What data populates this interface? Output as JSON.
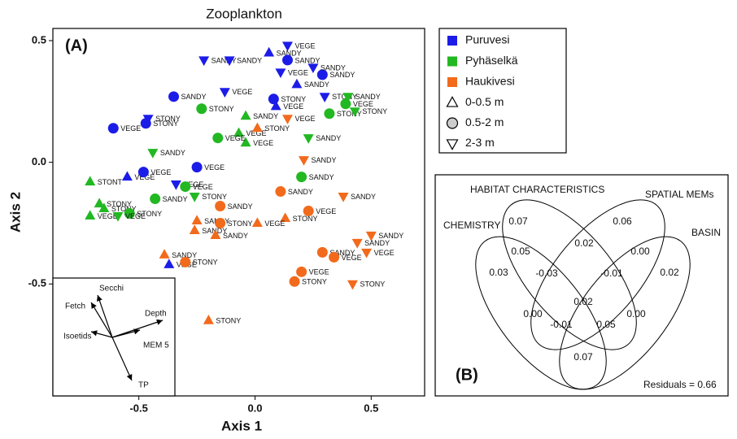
{
  "chart_data": {
    "type": "scatter",
    "title": "Zooplankton",
    "panel_label": "(A)",
    "x_label": "Axis 1",
    "y_label": "Axis 2",
    "xlim": [
      -0.87,
      0.73
    ],
    "ylim": [
      -0.96,
      0.55
    ],
    "xticks": [
      -0.5,
      {
        "value": 0,
        "label": "0.0"
      },
      0.5
    ],
    "yticks": [
      -0.5,
      {
        "value": 0,
        "label": "0.0"
      },
      0.5
    ],
    "depths": [
      {
        "name": "0-0.5 m",
        "shape": "triangle-up"
      },
      {
        "name": "0.5-2 m",
        "shape": "circle"
      },
      {
        "name": "2-3 m",
        "shape": "triangle-down"
      }
    ],
    "series": [
      {
        "name": "Puruvesi",
        "color": "#1c1ce8",
        "groups": [
          {
            "x": [
              0.06,
              0.18,
              0.09,
              -0.55,
              -0.37
            ],
            "y": [
              0.45,
              0.32,
              0.23,
              -0.06,
              -0.42
            ],
            "labels": [
              "SANDY",
              "SANDY",
              "VEGE",
              "VEGE",
              "VEGE"
            ]
          },
          {
            "x": [
              0.14,
              0.29,
              -0.35,
              0.08,
              -0.47,
              -0.61,
              -0.48,
              -0.25
            ],
            "y": [
              0.42,
              0.36,
              0.27,
              0.26,
              0.16,
              0.14,
              -0.04,
              -0.02
            ],
            "labels": [
              "SANDY",
              "SANDY",
              "SANDY",
              "STONY",
              "STONY",
              "VEGE",
              "VEGE",
              "VEGE"
            ]
          },
          {
            "x": [
              0.14,
              -0.22,
              -0.11,
              0.25,
              0.11,
              -0.13,
              0.3,
              -0.46,
              -0.34
            ],
            "y": [
              0.48,
              0.42,
              0.42,
              0.39,
              0.37,
              0.29,
              0.27,
              0.18,
              -0.09
            ],
            "labels": [
              "VEGE",
              "SANDY",
              "SANDY",
              "SANDY",
              "VEGE",
              "VEGE",
              "STONY",
              "STONY",
              "VEGE"
            ]
          }
        ]
      },
      {
        "name": "Pyhäselkä",
        "color": "#22b822",
        "groups": [
          {
            "x": [
              -0.04,
              -0.07,
              -0.04,
              -0.71,
              -0.67,
              -0.65,
              -0.71
            ],
            "y": [
              0.19,
              0.12,
              0.08,
              -0.08,
              -0.17,
              -0.19,
              -0.22
            ],
            "labels": [
              "SANDY",
              "VEGE",
              "VEGE",
              "STONT",
              "STONY",
              "STONY",
              "VEGE"
            ]
          },
          {
            "x": [
              0.39,
              0.32,
              -0.23,
              -0.16,
              0.2,
              -0.43,
              -0.3,
              -0.54
            ],
            "y": [
              0.24,
              0.2,
              0.22,
              0.1,
              -0.06,
              -0.15,
              -0.1,
              -0.21
            ],
            "labels": [
              "VEGE",
              "STONY",
              "STONY",
              "VEGE",
              "SANDY",
              "SANDY",
              "VEGE",
              "STONY"
            ]
          },
          {
            "x": [
              0.4,
              0.43,
              0.23,
              -0.44,
              -0.26,
              -0.59
            ],
            "y": [
              0.27,
              0.21,
              0.1,
              0.04,
              -0.14,
              -0.22
            ],
            "labels": [
              "SANDY",
              "STONY",
              "SANDY",
              "SANDY",
              "STONY",
              "VEGE"
            ]
          }
        ]
      },
      {
        "name": "Haukivesi",
        "color": "#f26a1b",
        "groups": [
          {
            "x": [
              0.01,
              0.13,
              0.01,
              -0.25,
              -0.26,
              -0.17,
              -0.39,
              -0.2
            ],
            "y": [
              0.14,
              -0.23,
              -0.25,
              -0.24,
              -0.28,
              -0.3,
              -0.38,
              -0.65
            ],
            "labels": [
              "STONY",
              "STONY",
              "VEGE",
              "SANDY",
              "SANDY",
              "SANDY",
              "SANDY",
              "STONY"
            ]
          },
          {
            "x": [
              0.11,
              0.23,
              -0.15,
              -0.15,
              0.29,
              0.34,
              0.2,
              0.17,
              -0.3
            ],
            "y": [
              -0.12,
              -0.2,
              -0.18,
              -0.25,
              -0.37,
              -0.39,
              -0.45,
              -0.49,
              -0.41
            ],
            "labels": [
              "SANDY",
              "VEGE",
              "SANDY",
              "STONY",
              "SANDY",
              "VEGE",
              "VEGE",
              "STONY",
              "STONY"
            ]
          },
          {
            "x": [
              0.14,
              0.21,
              0.38,
              0.5,
              0.44,
              0.48,
              0.42
            ],
            "y": [
              0.18,
              0.01,
              -0.14,
              -0.3,
              -0.33,
              -0.37,
              -0.5
            ],
            "labels": [
              "VEGE",
              "SANDY",
              "SANDY",
              "SANDY",
              "SANDY",
              "VEGE",
              "STONY"
            ]
          }
        ]
      }
    ]
  },
  "biplot": {
    "variables": [
      "Secchi",
      "Fetch",
      "Depth",
      "Isoetids",
      "MEM 5",
      "TP"
    ]
  },
  "venn": {
    "panel_label": "(B)",
    "sets": [
      "CHEMISTRY",
      "HABITAT  CHARACTERISTICS",
      "SPATIAL MEMs",
      "BASIN"
    ],
    "values": [
      "0.07",
      "0.06",
      "0.03",
      "0.02",
      "0.05",
      "0.02",
      "0.00",
      "-0.03",
      "-0.01",
      "0.02",
      "0.00",
      "0.00",
      "-0.01",
      "0.05",
      "0.07"
    ],
    "residuals": "Residuals = 0.66"
  }
}
